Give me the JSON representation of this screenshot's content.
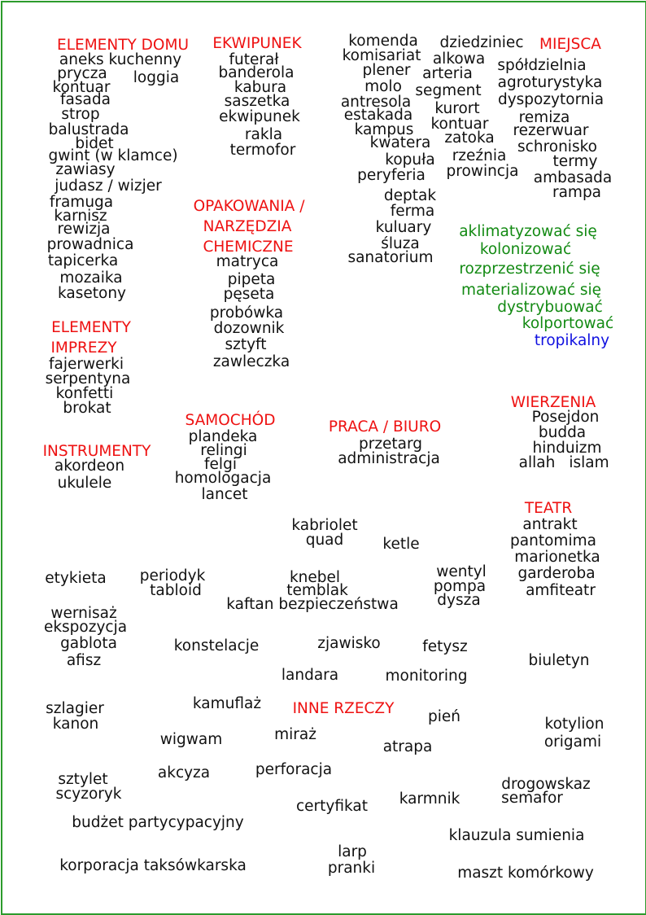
{
  "colors": {
    "border": "#2c9b2c",
    "heading": "#ee1111",
    "word": "#111111",
    "verb": "#138a13",
    "adjective": "#1010e0"
  },
  "sections": {
    "dom": {
      "heading": "ELEMENTY DOMU",
      "words": [
        "aneks kuchenny",
        "prycza",
        "loggia",
        "kontuar",
        "fasada",
        "strop",
        "balustrada",
        "bidet",
        "gwint (w klamce)",
        "zawiasy",
        "judasz / wizjer",
        "framuga",
        "karnisz",
        "rewizja",
        "prowadnica",
        "tapicerka",
        "mozaika",
        "kasetony"
      ]
    },
    "ekwipunek": {
      "heading": "EKWIPUNEK",
      "words": [
        "futerał",
        "banderola",
        "kabura",
        "saszetka",
        "ekwipunek",
        "rakla",
        "termofor"
      ]
    },
    "srodek": {
      "words": [
        "komenda",
        "komisariat",
        "plener",
        "molo",
        "antresola",
        "estakada",
        "kampus",
        "kwatera",
        "kopuła",
        "peryferia",
        "dziedziniec",
        "alkowa",
        "arteria",
        "segment",
        "kurort",
        "kontuar",
        "zatoka",
        "rzeźnia",
        "prowincja",
        "deptak",
        "ferma",
        "kuluary",
        "śluza",
        "sanatorium"
      ]
    },
    "miejsca": {
      "heading": "MIEJSCA",
      "words": [
        "spółdzielnia",
        "agroturystyka",
        "dyspozytornia",
        "remiza",
        "rezerwuar",
        "schronisko",
        "termy",
        "ambasada",
        "rampa"
      ]
    },
    "opakowania": {
      "heading_lines": [
        "OPAKOWANIA /",
        "NARZĘDZIA",
        "CHEMICZNE"
      ],
      "words": [
        "matryca",
        "pipeta",
        "pęseta",
        "probówka",
        "dozownik",
        "sztyft",
        "zawleczka"
      ]
    },
    "czasowniki": {
      "words": [
        "aklimatyzować się",
        "kolonizować",
        "rozprzestrzenić się",
        "materializować się",
        "dystrybuować",
        "kolportować"
      ],
      "adjective": "tropikalny"
    },
    "impreza": {
      "heading_lines": [
        "ELEMENTY",
        "IMPREZY"
      ],
      "words": [
        "fajerwerki",
        "serpentyna",
        "konfetti",
        "brokat"
      ]
    },
    "samochod": {
      "heading": "SAMOCHÓD",
      "words": [
        "plandeka",
        "relingi",
        "felgi",
        "homologacja",
        "lancet"
      ]
    },
    "praca": {
      "heading": "PRACA / BIURO",
      "words": [
        "przetarg",
        "administracja"
      ]
    },
    "wierzenia": {
      "heading": "WIERZENIA",
      "words": [
        "Posejdon",
        "budda",
        "hinduizm",
        "allah",
        "islam"
      ]
    },
    "instrumenty": {
      "heading": "INSTRUMENTY",
      "words": [
        "akordeon",
        "ukulele"
      ]
    },
    "teatr": {
      "heading": "TEATR",
      "words": [
        "antrakt",
        "pantomima",
        "marionetka",
        "garderoba",
        "amfiteatr"
      ]
    },
    "inne": {
      "heading": "INNE RZECZY",
      "words": [
        "kabriolet",
        "quad",
        "ketle",
        "etykieta",
        "periodyk",
        "tabloid",
        "knebel",
        "temblak",
        "kaftan bezpieczeństwa",
        "wentyl",
        "pompa",
        "dysza",
        "wernisaż",
        "ekspozycja",
        "gablota",
        "afisz",
        "konstelacje",
        "zjawisko",
        "fetysz",
        "biuletyn",
        "landara",
        "monitoring",
        "kamuflaż",
        "szlagier",
        "kanon",
        "pień",
        "kotylion",
        "origami",
        "wigwam",
        "miraż",
        "atrapa",
        "sztylet",
        "scyzoryk",
        "akcyza",
        "perforacja",
        "drogowskaz",
        "semafor",
        "certyfikat",
        "karmnik",
        "budżet partycypacyjny",
        "klauzula sumienia",
        "larp",
        "pranki",
        "korporacja taksówkarska",
        "maszt komórkowy"
      ]
    }
  }
}
